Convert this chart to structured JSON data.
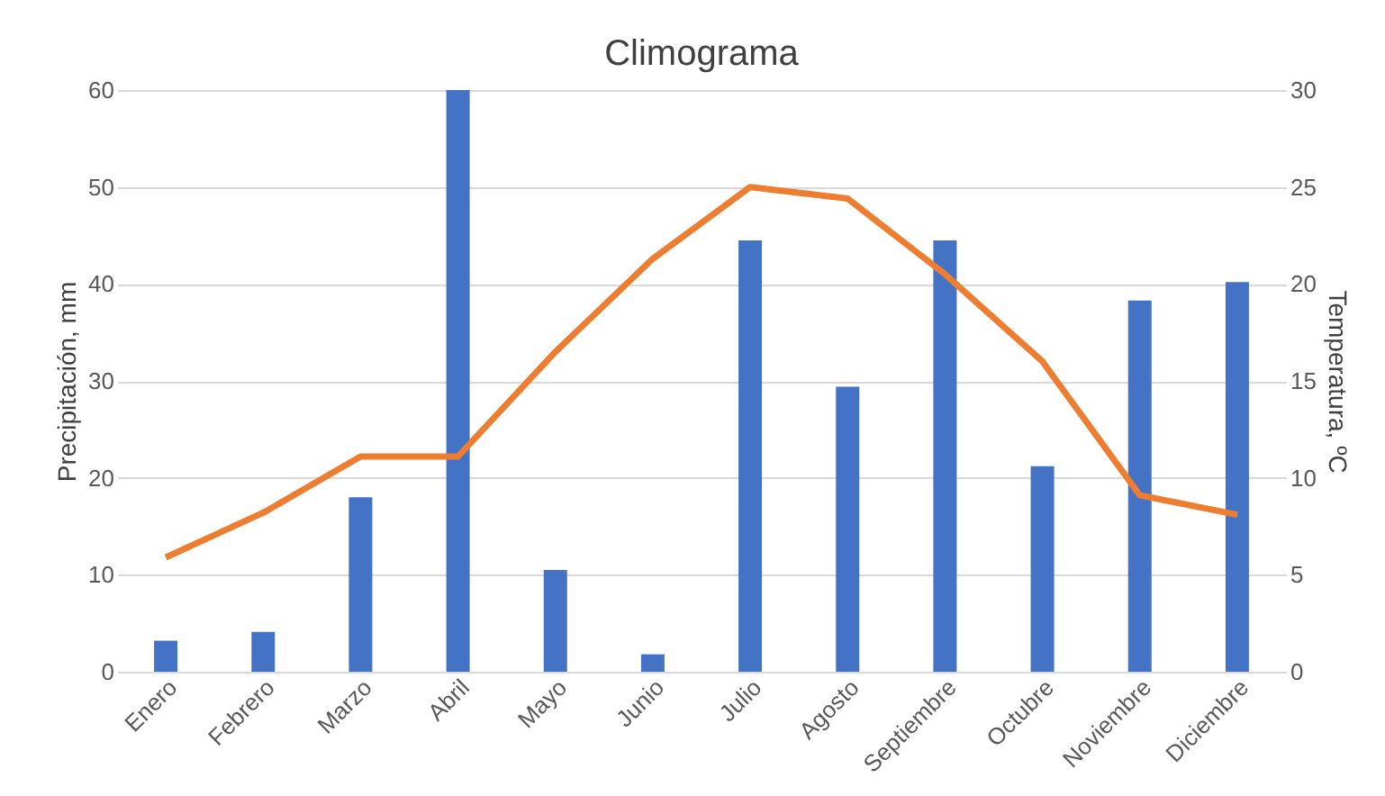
{
  "chart_data": {
    "type": "bar",
    "title": "Climograma",
    "ylabel": "Precipitación, mm",
    "y2label": "Temperatura, ºC",
    "categories": [
      "Enero",
      "Febrero",
      "Marzo",
      "Abril",
      "Mayo",
      "Junio",
      "Julio",
      "Agosto",
      "Septiembre",
      "Octubre",
      "Noviembre",
      "Diciembre"
    ],
    "series": [
      {
        "color": "#4472c4",
        "values": [
          3.2,
          4.1,
          18.0,
          60,
          10.5,
          1.8,
          44.5,
          29.4,
          44.5,
          21.2,
          38.3,
          40.2
        ]
      },
      {
        "type": "line",
        "axis": "y2",
        "color": "#ed7d31",
        "values": [
          5.9,
          8.2,
          11.1,
          11.1,
          16.5,
          21.3,
          25.0,
          24.4,
          20.5,
          16.0,
          9.1,
          8.1
        ]
      }
    ],
    "ylim": [
      0,
      60
    ],
    "yticks": [
      0,
      10,
      20,
      30,
      40,
      50,
      60
    ],
    "y2lim": [
      0,
      30
    ],
    "y2ticks": [
      0,
      5,
      10,
      15,
      20,
      25,
      30
    ],
    "grid": "y",
    "marker": "none",
    "line_style": "solid"
  }
}
